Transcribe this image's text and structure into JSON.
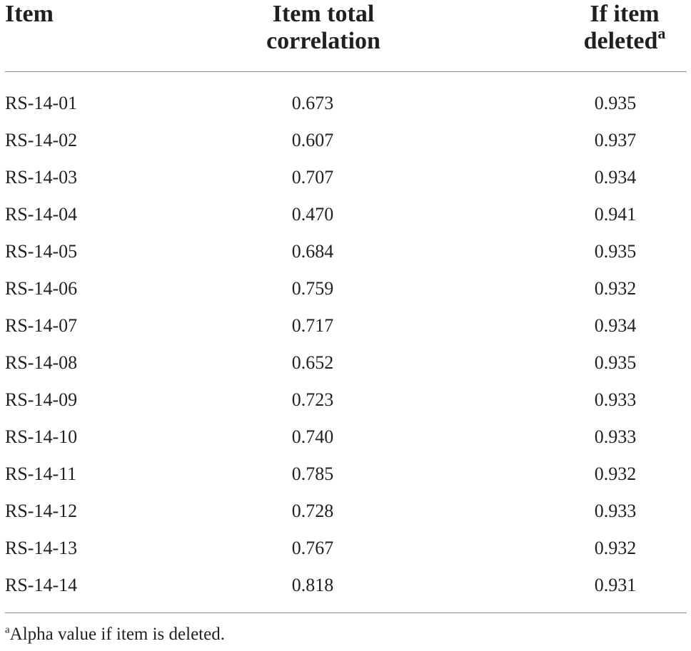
{
  "table": {
    "headers": {
      "item": "Item",
      "corr_line1": "Item total",
      "corr_line2": "correlation",
      "del_line1": "If item",
      "del_line2": "deleted",
      "del_sup": "a"
    },
    "rows": [
      {
        "item": "RS-14-01",
        "corr": "0.673",
        "del": "0.935"
      },
      {
        "item": "RS-14-02",
        "corr": "0.607",
        "del": "0.937"
      },
      {
        "item": "RS-14-03",
        "corr": "0.707",
        "del": "0.934"
      },
      {
        "item": "RS-14-04",
        "corr": "0.470",
        "del": "0.941"
      },
      {
        "item": "RS-14-05",
        "corr": "0.684",
        "del": "0.935"
      },
      {
        "item": "RS-14-06",
        "corr": "0.759",
        "del": "0.932"
      },
      {
        "item": "RS-14-07",
        "corr": "0.717",
        "del": "0.934"
      },
      {
        "item": "RS-14-08",
        "corr": "0.652",
        "del": "0.935"
      },
      {
        "item": "RS-14-09",
        "corr": "0.723",
        "del": "0.933"
      },
      {
        "item": "RS-14-10",
        "corr": "0.740",
        "del": "0.933"
      },
      {
        "item": "RS-14-11",
        "corr": "0.785",
        "del": "0.932"
      },
      {
        "item": "RS-14-12",
        "corr": "0.728",
        "del": "0.933"
      },
      {
        "item": "RS-14-13",
        "corr": "0.767",
        "del": "0.932"
      },
      {
        "item": "RS-14-14",
        "corr": "0.818",
        "del": "0.931"
      }
    ],
    "footnote": {
      "marker": "a",
      "text": "Alpha value if item is deleted."
    }
  }
}
